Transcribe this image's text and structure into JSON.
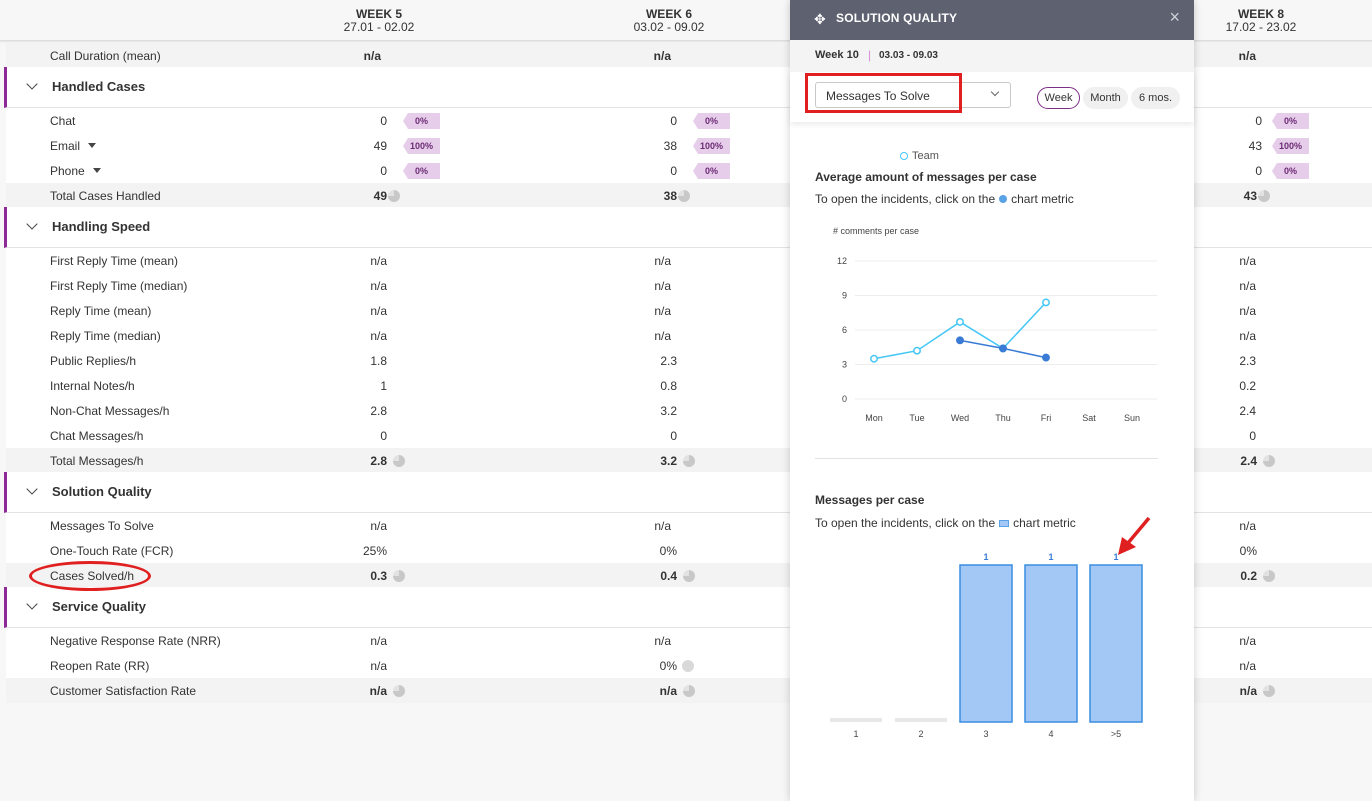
{
  "weeks": [
    {
      "title": "WEEK 5",
      "dates": "27.01 - 02.02"
    },
    {
      "title": "WEEK 6",
      "dates": "03.02 - 09.02"
    },
    {
      "title": "WEEK 8",
      "dates": "17.02 - 23.02"
    }
  ],
  "rows": {
    "call_duration": {
      "label": "Call Duration (mean)",
      "w5": "n/a",
      "w6": "n/a",
      "w8": "n/a"
    },
    "chat": {
      "label": "Chat",
      "w5": "0",
      "w5p": "0%",
      "w6": "0",
      "w6p": "0%",
      "w8": "0",
      "w8p": "0%"
    },
    "email": {
      "label": "Email",
      "w5": "49",
      "w5p": "100%",
      "w6": "38",
      "w6p": "100%",
      "w8": "43",
      "w8p": "100%"
    },
    "phone": {
      "label": "Phone",
      "w5": "0",
      "w5p": "0%",
      "w6": "0",
      "w6p": "0%",
      "w8": "0",
      "w8p": "0%"
    },
    "total_cases": {
      "label": "Total Cases Handled",
      "w5": "49",
      "w6": "38",
      "w8": "43"
    },
    "frt_mean": {
      "label": "First Reply Time (mean)",
      "w5": "n/a",
      "w6": "n/a",
      "w8": "n/a"
    },
    "frt_median": {
      "label": "First Reply Time (median)",
      "w5": "n/a",
      "w6": "n/a",
      "w8": "n/a"
    },
    "rt_mean": {
      "label": "Reply Time (mean)",
      "w5": "n/a",
      "w6": "n/a",
      "w8": "n/a"
    },
    "rt_median": {
      "label": "Reply Time (median)",
      "w5": "n/a",
      "w6": "n/a",
      "w8": "n/a"
    },
    "public_replies": {
      "label": "Public Replies/h",
      "w5": "1.8",
      "w6": "2.3",
      "w8": "2.3"
    },
    "internal_notes": {
      "label": "Internal Notes/h",
      "w5": "1",
      "w6": "0.8",
      "w8": "0.2"
    },
    "nonchat_msgs": {
      "label": "Non-Chat Messages/h",
      "w5": "2.8",
      "w6": "3.2",
      "w8": "2.4"
    },
    "chat_msgs": {
      "label": "Chat Messages/h",
      "w5": "0",
      "w6": "0",
      "w8": "0"
    },
    "total_msgs": {
      "label": "Total Messages/h",
      "w5": "2.8",
      "w6": "3.2",
      "w8": "2.4"
    },
    "msgs_to_solve": {
      "label": "Messages To Solve",
      "w5": "n/a",
      "w6": "n/a",
      "w8": "n/a"
    },
    "fcr": {
      "label": "One-Touch Rate (FCR)",
      "w5": "25%",
      "w6": "0%",
      "w8": "0%"
    },
    "cases_solved": {
      "label": "Cases Solved/h",
      "w5": "0.3",
      "w6": "0.4",
      "w8": "0.2"
    },
    "nrr": {
      "label": "Negative Response Rate (NRR)",
      "w5": "n/a",
      "w6": "n/a",
      "w8": "n/a"
    },
    "reopen": {
      "label": "Reopen Rate (RR)",
      "w5": "n/a",
      "w6": "0%",
      "w8": "n/a"
    },
    "csat": {
      "label": "Customer Satisfaction Rate",
      "w5": "n/a",
      "w6": "n/a",
      "w8": "n/a"
    }
  },
  "sections": {
    "handled": "Handled Cases",
    "speed": "Handling Speed",
    "solution": "Solution Quality",
    "service": "Service Quality"
  },
  "panel": {
    "title": "SOLUTION QUALITY",
    "close": "×",
    "week_label": "Week 10",
    "separator": "|",
    "week_dates": "03.03 - 09.03",
    "metric_selected": "Messages To Solve",
    "periods": [
      "Week",
      "Month",
      "6 mos."
    ],
    "active_period": "Week",
    "legend_team": "Team",
    "line_title": "Average amount of messages per case",
    "hint_prefix": "To open the incidents, click on the",
    "hint_suffix": "chart metric",
    "bar_title": "Messages per case"
  },
  "colors": {
    "accent": "#8e2a97",
    "line_team": "#45c7f5",
    "line_agent": "#3a7bd5",
    "bar_fill": "#a3c8f5",
    "bar_stroke": "#3a8de0",
    "annotation": "#e02020"
  },
  "chart_data": [
    {
      "type": "line",
      "title": "Average amount of messages per case",
      "ylabel": "# comments per case",
      "x": [
        "Mon",
        "Tue",
        "Wed",
        "Thu",
        "Fri",
        "Sat",
        "Sun"
      ],
      "yticks": [
        0,
        3,
        6,
        9,
        12
      ],
      "ylim": [
        0,
        12
      ],
      "series": [
        {
          "name": "Team",
          "values": [
            3.5,
            4.2,
            6.7,
            4.4,
            8.4,
            null,
            null
          ],
          "color": "#45c7f5"
        },
        {
          "values": [
            null,
            null,
            5.1,
            4.4,
            3.6,
            null,
            null
          ],
          "color": "#3a7bd5"
        }
      ],
      "legend": "top-left"
    },
    {
      "type": "bar",
      "title": "Messages per case",
      "categories": [
        "1",
        "2",
        "3",
        "4",
        ">5"
      ],
      "values": [
        0,
        0,
        1,
        1,
        1
      ],
      "data_labels": [
        "",
        "",
        "1",
        "1",
        "1"
      ],
      "ylim": [
        0,
        1
      ]
    }
  ]
}
